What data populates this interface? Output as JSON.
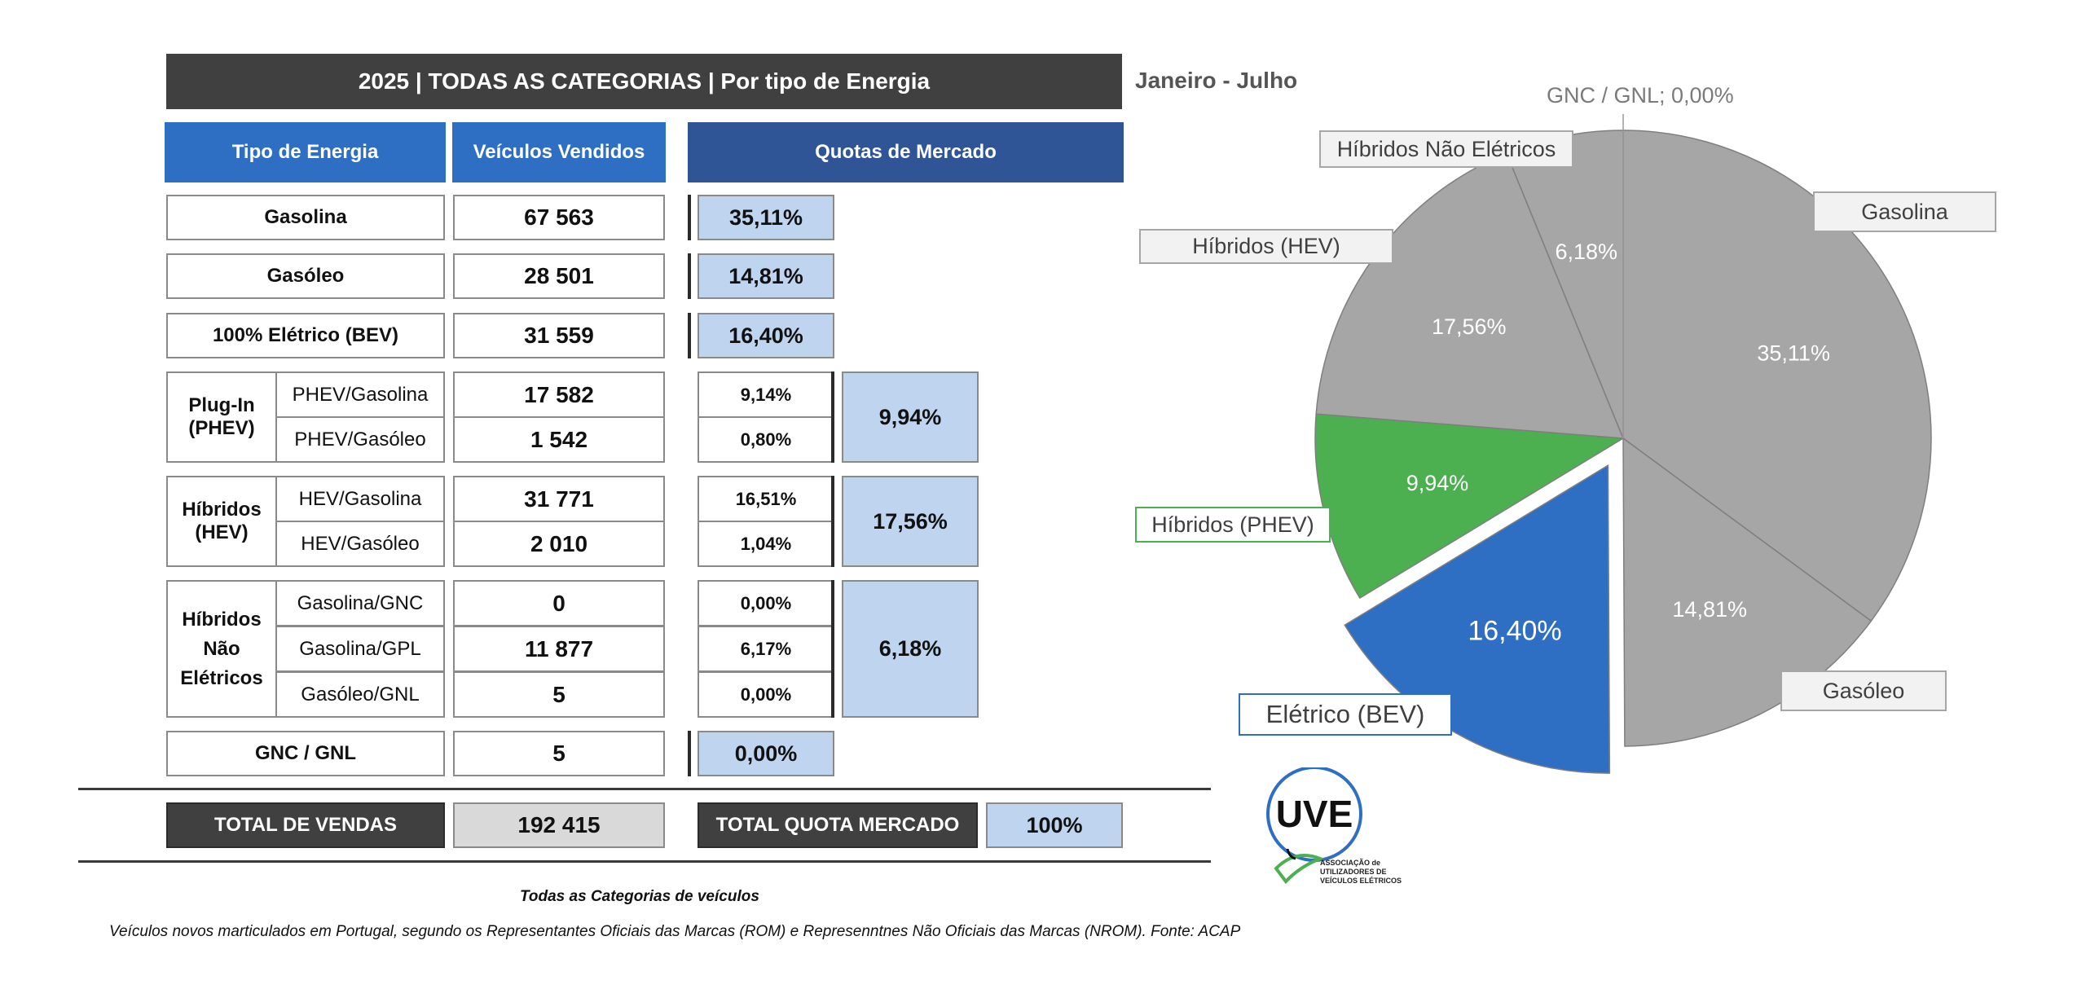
{
  "table": {
    "title": "2025 | TODAS AS CATEGORIAS | Por tipo de Energia",
    "period": "Janeiro - Julho",
    "headers": {
      "type": "Tipo de Energia",
      "sold": "Veículos Vendidos",
      "share": "Quotas de Mercado"
    },
    "simple_rows": [
      {
        "label": "Gasolina",
        "sold": "67 563",
        "share": "35,11%"
      },
      {
        "label": "Gasóleo",
        "sold": "28 501",
        "share": "14,81%"
      },
      {
        "label": "100% Elétrico (BEV)",
        "sold": "31 559",
        "share": "16,40%"
      }
    ],
    "groups": [
      {
        "label": "Plug-In (PHEV)",
        "total_share": "9,94%",
        "rows": [
          {
            "label": "PHEV/Gasolina",
            "sold": "17 582",
            "share": "9,14%"
          },
          {
            "label": "PHEV/Gasóleo",
            "sold": "1 542",
            "share": "0,80%"
          }
        ]
      },
      {
        "label": "Híbridos (HEV)",
        "total_share": "17,56%",
        "rows": [
          {
            "label": "HEV/Gasolina",
            "sold": "31 771",
            "share": "16,51%"
          },
          {
            "label": "HEV/Gasóleo",
            "sold": "2 010",
            "share": "1,04%"
          }
        ]
      },
      {
        "label": "Híbridos Não Elétricos",
        "total_share": "6,18%",
        "rows": [
          {
            "label": "Gasolina/GNC",
            "sold": "0",
            "share": "0,00%"
          },
          {
            "label": "Gasolina/GPL",
            "sold": "11 877",
            "share": "6,17%"
          },
          {
            "label": "Gasóleo/GNL",
            "sold": "5",
            "share": "0,00%"
          }
        ]
      }
    ],
    "gnc_row": {
      "label": "GNC / GNL",
      "sold": "5",
      "share": "0,00%"
    },
    "totals": {
      "sales_label": "TOTAL DE VENDAS",
      "sales_value": "192 415",
      "share_label": "TOTAL QUOTA MERCADO",
      "share_value": "100%"
    }
  },
  "footnotes": {
    "line1": "Todas as Categorias de veículos",
    "line2": "Veículos novos marticulados em Portugal, segundo os Representantes Oficiais das Marcas (ROM) e Represenntnes Não Oficiais das Marcas (NROM). Fonte: ACAP"
  },
  "logo": {
    "mark": "UVE",
    "text_lines": [
      "ASSOCIAÇÃO de",
      "UTILIZADORES DE",
      "VEÍCULOS ELÉTRICOS"
    ]
  },
  "chart_data": {
    "type": "pie",
    "start_angle_deg": 0,
    "slices": [
      {
        "name": "Gasolina",
        "value": 35.11,
        "label": "35,11%",
        "color": "#a6a6a6",
        "exploded": false
      },
      {
        "name": "Gasóleo",
        "value": 14.81,
        "label": "14,81%",
        "color": "#a6a6a6",
        "exploded": false
      },
      {
        "name": "Elétrico (BEV)",
        "value": 16.4,
        "label": "16,40%",
        "color": "#2e6fc4",
        "exploded": true
      },
      {
        "name": "Híbridos (PHEV)",
        "value": 9.94,
        "label": "9,94%",
        "color": "#4caf50",
        "exploded": false
      },
      {
        "name": "Híbridos (HEV)",
        "value": 17.56,
        "label": "17,56%",
        "color": "#a6a6a6",
        "exploded": false
      },
      {
        "name": "Híbridos Não Elétricos",
        "value": 6.18,
        "label": "6,18%",
        "color": "#a6a6a6",
        "exploded": false
      },
      {
        "name": "GNC / GNL",
        "value": 0.0,
        "label": "0,00%",
        "color": "#a6a6a6",
        "exploded": false
      }
    ],
    "legend_labels": {
      "gasolina": "Gasolina",
      "gasoleo": "Gasóleo",
      "bev": "Elétrico (BEV)",
      "phev": "Híbridos (PHEV)",
      "hev": "Híbridos (HEV)",
      "hne": "Híbridos Não Elétricos",
      "gnc": "GNC / GNL; 0,00%"
    }
  }
}
